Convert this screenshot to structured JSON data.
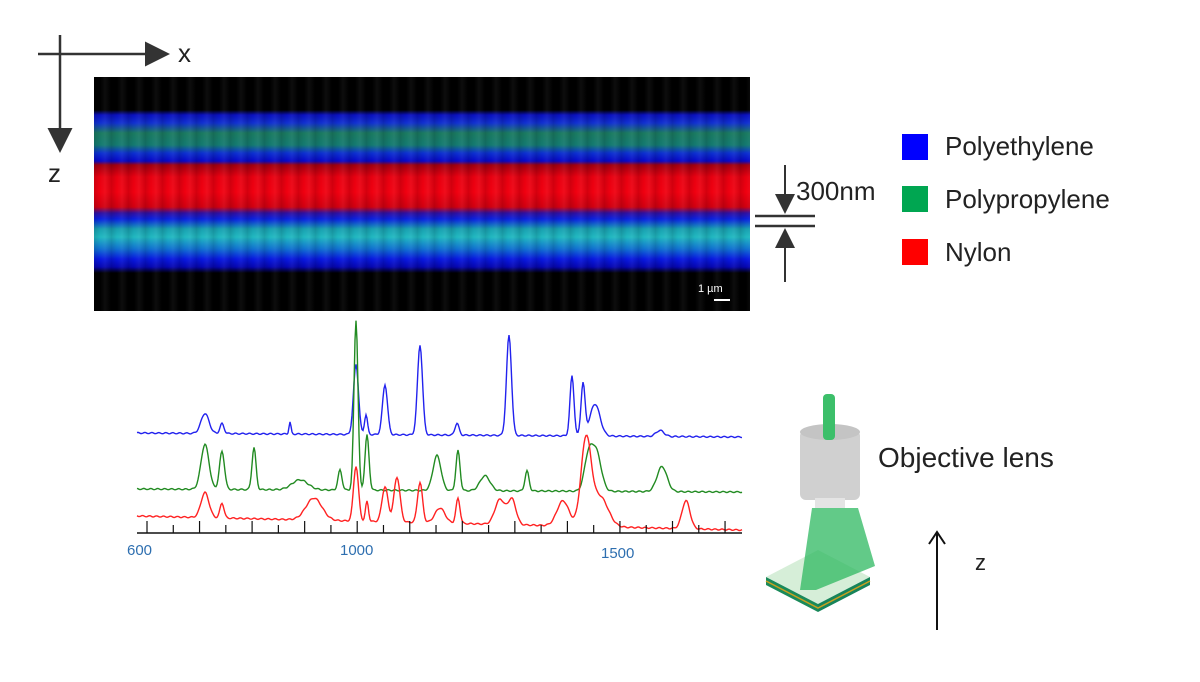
{
  "axes_diagram": {
    "x_label": "x",
    "z_label": "z"
  },
  "image": {
    "scale_bar": "1 µm"
  },
  "thickness": {
    "label": "300nm"
  },
  "legend": [
    {
      "label": "Polyethylene",
      "color": "#0000ff"
    },
    {
      "label": "Polypropylene",
      "color": "#00a651"
    },
    {
      "label": "Nylon",
      "color": "#ff0000"
    }
  ],
  "spectra": {
    "tick_labels": [
      "600",
      "1000",
      "1500"
    ],
    "series_colors": [
      "#2222ee",
      "#228b22",
      "#ff2222"
    ]
  },
  "objective": {
    "label": "Objective lens",
    "z_label": "z"
  }
}
